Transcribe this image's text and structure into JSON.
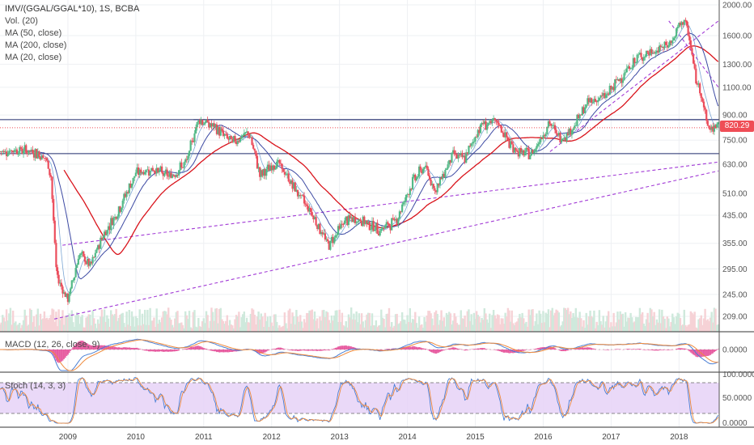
{
  "legend": {
    "symbol": "IMV/(GGAL/GGAL*10), 1S, BCBA",
    "vol": "Vol. (20)",
    "ma50": "MA (50, close)",
    "ma200": "MA (200, close)",
    "ma20": "MA (20, close)"
  },
  "macd_title": "MACD (12, 26, close, 9)",
  "stoch_title": "Stoch (14, 3, 3)",
  "last_price_label": "820.29",
  "colors": {
    "up": "#53b987",
    "down": "#eb4d5c",
    "ma50": "#3d4aa3",
    "ma200": "#d9131b",
    "ma20": "#5a8fc9",
    "trend": "#a23bd6",
    "hline": "#1f2a6b",
    "stoch_band": "#e6d2f7",
    "stoch_k": "#4a7fd4",
    "stoch_d": "#ef8a3c",
    "macd_line": "#4a7fd4",
    "signal_line": "#ef8a3c",
    "hist": "#e23a8c"
  },
  "chart_data": {
    "type": "line",
    "price_scale": "log",
    "price_ticks": [
      2000,
      1600,
      1300,
      1100,
      900,
      750,
      630,
      510,
      435,
      355,
      295,
      245,
      209
    ],
    "macd_ticks": [
      "0.0000"
    ],
    "stoch_ticks": [
      "100.0000",
      "50.0000",
      "0.0000"
    ],
    "x_ticks": [
      "2009",
      "2010",
      "2011",
      "2012",
      "2013",
      "2014",
      "2015",
      "2016",
      "2017",
      "2018"
    ],
    "date_range": [
      "2008-01",
      "2018-06"
    ],
    "last_price": 820.29,
    "series": [
      {
        "name": "IMV/(GGAL/GGAL*10)",
        "dates": [
          "2008-01",
          "2008-04",
          "2008-07",
          "2008-09",
          "2008-10",
          "2008-11",
          "2009-01",
          "2009-03",
          "2009-05",
          "2009-07",
          "2009-10",
          "2010-01",
          "2010-04",
          "2010-07",
          "2010-10",
          "2010-12",
          "2011-03",
          "2011-06",
          "2011-09",
          "2011-11",
          "2012-02",
          "2012-05",
          "2012-08",
          "2012-11",
          "2013-02",
          "2013-05",
          "2013-08",
          "2013-11",
          "2014-02",
          "2014-04",
          "2014-06",
          "2014-09",
          "2014-11",
          "2015-02",
          "2015-05",
          "2015-07",
          "2015-09",
          "2015-11",
          "2016-02",
          "2016-04",
          "2016-06",
          "2016-09",
          "2016-12",
          "2017-03",
          "2017-06",
          "2017-09",
          "2017-12",
          "2018-01",
          "2018-02",
          "2018-03",
          "2018-04",
          "2018-05",
          "2018-06"
        ],
        "values": [
          690,
          700,
          690,
          660,
          580,
          280,
          235,
          330,
          300,
          370,
          455,
          590,
          610,
          575,
          640,
          875,
          820,
          740,
          790,
          580,
          640,
          530,
          445,
          350,
          420,
          420,
          390,
          420,
          560,
          620,
          520,
          680,
          650,
          840,
          850,
          730,
          680,
          680,
          850,
          760,
          810,
          990,
          1030,
          1200,
          1380,
          1430,
          1550,
          1720,
          1800,
          1500,
          1150,
          1060,
          820
        ]
      }
    ],
    "support_levels": [
      870,
      680
    ]
  }
}
